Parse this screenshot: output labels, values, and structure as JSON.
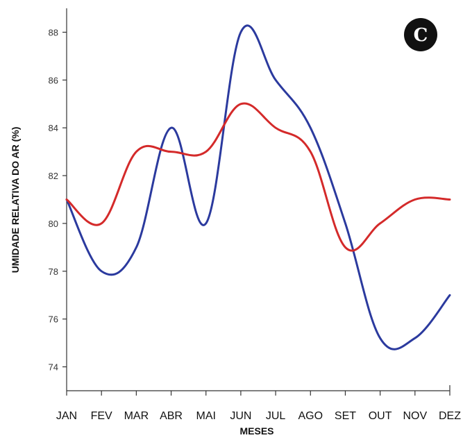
{
  "chart_data": {
    "type": "line",
    "badge": "C",
    "xlabel": "MESES",
    "ylabel": "UMIDADE RELATIVA DO AR (%)",
    "categories": [
      "JAN",
      "FEV",
      "MAR",
      "ABR",
      "MAI",
      "JUN",
      "JUL",
      "AGO",
      "SET",
      "OUT",
      "NOV",
      "DEZ"
    ],
    "ylim": [
      73,
      89
    ],
    "yticks": [
      74,
      76,
      78,
      80,
      82,
      84,
      86,
      88
    ],
    "grid": false,
    "series": [
      {
        "color": "#2b3a9e",
        "values": [
          81,
          78,
          79,
          84,
          80,
          88,
          86,
          84,
          80,
          75.2,
          75.2,
          77
        ]
      },
      {
        "color": "#d42a2a",
        "values": [
          81,
          80,
          83,
          83,
          83,
          85,
          84,
          83,
          79,
          80,
          81,
          81
        ]
      }
    ],
    "colors": {
      "axis": "#333333",
      "badge_bg": "#111111"
    }
  }
}
